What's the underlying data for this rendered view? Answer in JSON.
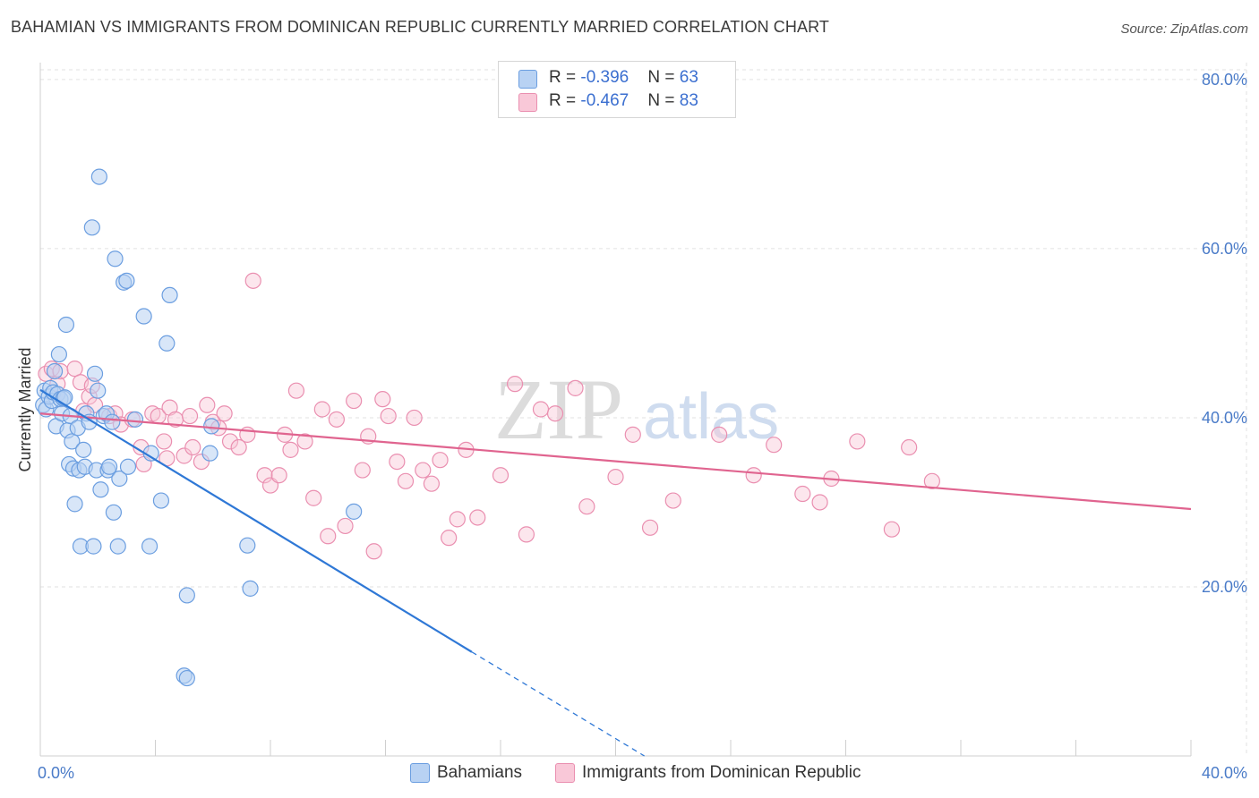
{
  "title": "BAHAMIAN VS IMMIGRANTS FROM DOMINICAN REPUBLIC CURRENTLY MARRIED CORRELATION CHART",
  "source": "Source: ZipAtlas.com",
  "watermark": {
    "zip": "ZIP",
    "atlas": "atlas"
  },
  "legend": {
    "rows": [
      {
        "r_label": "R = ",
        "r_value": "-0.396",
        "n_label": "N = ",
        "n_value": "63"
      },
      {
        "r_label": "R = ",
        "r_value": "-0.467",
        "n_label": "N = ",
        "n_value": "83"
      }
    ]
  },
  "bottom_legend": {
    "series1": "Bahamians",
    "series2": "Immigrants from Dominican Republic"
  },
  "colors": {
    "blue_fill": "#b8d2f3",
    "blue_stroke": "#6b9ee0",
    "blue_line": "#2f78d6",
    "pink_fill": "#f9c8d8",
    "pink_stroke": "#ea8fb0",
    "pink_line": "#e0648f",
    "grid": "#e2e2e2",
    "axis_label": "#4a7bc8"
  },
  "chart_data": {
    "type": "scatter",
    "title": "BAHAMIAN VS IMMIGRANTS FROM DOMINICAN REPUBLIC CURRENTLY MARRIED CORRELATION CHART",
    "xlabel": "",
    "ylabel": "Currently Married",
    "xlim": [
      0,
      40
    ],
    "ylim": [
      0,
      82
    ],
    "x_tick_labels": [
      "0.0%",
      "40.0%"
    ],
    "y_ticks": [
      20,
      40,
      60,
      80
    ],
    "y_tick_labels": [
      "20.0%",
      "40.0%",
      "60.0%",
      "80.0%"
    ],
    "grid": true,
    "legend_position": "top-center",
    "series": [
      {
        "name": "Bahamians",
        "r": -0.396,
        "n": 63,
        "trend": {
          "x_start": 0,
          "y_start": 43.3,
          "x_end": 15.0,
          "y_end": 12.3,
          "x_dashed_end": 21.0,
          "y_dashed_end": 0
        },
        "points": [
          [
            0.1,
            41.5
          ],
          [
            0.15,
            43.2
          ],
          [
            0.2,
            41.0
          ],
          [
            0.3,
            42.5
          ],
          [
            0.35,
            43.5
          ],
          [
            0.4,
            42.0
          ],
          [
            0.45,
            43.0
          ],
          [
            0.5,
            45.5
          ],
          [
            0.55,
            39.0
          ],
          [
            0.6,
            42.8
          ],
          [
            0.65,
            47.5
          ],
          [
            0.7,
            42.2
          ],
          [
            0.75,
            40.5
          ],
          [
            0.8,
            42.3
          ],
          [
            0.85,
            42.4
          ],
          [
            0.9,
            51.0
          ],
          [
            0.95,
            38.5
          ],
          [
            1.0,
            34.5
          ],
          [
            1.05,
            40.2
          ],
          [
            1.1,
            37.2
          ],
          [
            1.15,
            34.0
          ],
          [
            1.2,
            29.8
          ],
          [
            1.3,
            38.8
          ],
          [
            1.35,
            33.8
          ],
          [
            1.4,
            24.8
          ],
          [
            1.5,
            36.2
          ],
          [
            1.55,
            34.2
          ],
          [
            1.6,
            40.5
          ],
          [
            1.7,
            39.5
          ],
          [
            1.8,
            62.5
          ],
          [
            1.85,
            24.8
          ],
          [
            1.9,
            45.2
          ],
          [
            1.95,
            33.8
          ],
          [
            2.0,
            43.2
          ],
          [
            2.05,
            68.5
          ],
          [
            2.1,
            31.5
          ],
          [
            2.2,
            40.2
          ],
          [
            2.3,
            40.5
          ],
          [
            2.35,
            33.8
          ],
          [
            2.4,
            34.2
          ],
          [
            2.5,
            39.5
          ],
          [
            2.55,
            28.8
          ],
          [
            2.6,
            58.8
          ],
          [
            2.7,
            24.8
          ],
          [
            2.75,
            32.8
          ],
          [
            2.9,
            56.0
          ],
          [
            3.0,
            56.2
          ],
          [
            3.05,
            34.2
          ],
          [
            3.3,
            39.8
          ],
          [
            3.6,
            52.0
          ],
          [
            3.8,
            24.8
          ],
          [
            3.85,
            35.8
          ],
          [
            4.2,
            30.2
          ],
          [
            4.4,
            48.8
          ],
          [
            4.5,
            54.5
          ],
          [
            5.0,
            9.5
          ],
          [
            5.1,
            9.2
          ],
          [
            5.1,
            19.0
          ],
          [
            5.9,
            35.8
          ],
          [
            5.95,
            39.0
          ],
          [
            7.2,
            24.9
          ],
          [
            7.3,
            19.8
          ],
          [
            10.9,
            28.9
          ]
        ]
      },
      {
        "name": "Immigrants from Dominican Republic",
        "r": -0.467,
        "n": 83,
        "trend": {
          "x_start": 0,
          "y_start": 40.5,
          "x_end": 40,
          "y_end": 29.2
        },
        "points": [
          [
            0.2,
            45.2
          ],
          [
            0.4,
            45.8
          ],
          [
            0.6,
            44.0
          ],
          [
            0.7,
            45.5
          ],
          [
            1.2,
            45.8
          ],
          [
            1.4,
            44.2
          ],
          [
            1.5,
            40.8
          ],
          [
            1.7,
            42.5
          ],
          [
            1.8,
            43.8
          ],
          [
            1.9,
            41.5
          ],
          [
            2.4,
            40.2
          ],
          [
            2.6,
            40.5
          ],
          [
            2.8,
            39.2
          ],
          [
            3.2,
            39.8
          ],
          [
            3.5,
            36.5
          ],
          [
            3.6,
            34.5
          ],
          [
            3.9,
            40.5
          ],
          [
            4.1,
            40.2
          ],
          [
            4.3,
            37.2
          ],
          [
            4.4,
            35.2
          ],
          [
            4.5,
            41.2
          ],
          [
            4.7,
            39.8
          ],
          [
            5.0,
            35.5
          ],
          [
            5.2,
            40.2
          ],
          [
            5.3,
            36.5
          ],
          [
            5.6,
            34.8
          ],
          [
            5.8,
            41.5
          ],
          [
            6.0,
            39.5
          ],
          [
            6.2,
            38.8
          ],
          [
            6.4,
            40.5
          ],
          [
            6.6,
            37.2
          ],
          [
            6.9,
            36.5
          ],
          [
            7.2,
            38.0
          ],
          [
            7.4,
            56.2
          ],
          [
            7.8,
            33.2
          ],
          [
            8.0,
            32.0
          ],
          [
            8.3,
            33.2
          ],
          [
            8.5,
            38.0
          ],
          [
            8.7,
            36.2
          ],
          [
            8.9,
            43.2
          ],
          [
            9.2,
            37.2
          ],
          [
            9.5,
            30.5
          ],
          [
            9.8,
            41.0
          ],
          [
            10.0,
            26.0
          ],
          [
            10.3,
            39.8
          ],
          [
            10.6,
            27.2
          ],
          [
            10.9,
            42.0
          ],
          [
            11.2,
            33.8
          ],
          [
            11.4,
            37.8
          ],
          [
            11.6,
            24.2
          ],
          [
            11.9,
            42.2
          ],
          [
            12.1,
            40.2
          ],
          [
            12.4,
            34.8
          ],
          [
            12.7,
            32.5
          ],
          [
            13.0,
            40.0
          ],
          [
            13.3,
            33.8
          ],
          [
            13.6,
            32.2
          ],
          [
            13.9,
            35.0
          ],
          [
            14.2,
            25.8
          ],
          [
            14.5,
            28.0
          ],
          [
            14.8,
            36.2
          ],
          [
            15.2,
            28.2
          ],
          [
            16.0,
            33.2
          ],
          [
            16.5,
            44.0
          ],
          [
            16.9,
            26.2
          ],
          [
            17.4,
            41.0
          ],
          [
            17.9,
            40.5
          ],
          [
            18.6,
            43.5
          ],
          [
            19.0,
            29.5
          ],
          [
            20.0,
            33.0
          ],
          [
            20.6,
            38.0
          ],
          [
            21.2,
            27.0
          ],
          [
            22.0,
            30.2
          ],
          [
            23.6,
            38.0
          ],
          [
            24.8,
            33.2
          ],
          [
            25.5,
            36.8
          ],
          [
            26.5,
            31.0
          ],
          [
            27.1,
            30.0
          ],
          [
            27.5,
            32.8
          ],
          [
            28.4,
            37.2
          ],
          [
            29.6,
            26.8
          ],
          [
            30.2,
            36.5
          ],
          [
            31.0,
            32.5
          ]
        ]
      }
    ]
  }
}
